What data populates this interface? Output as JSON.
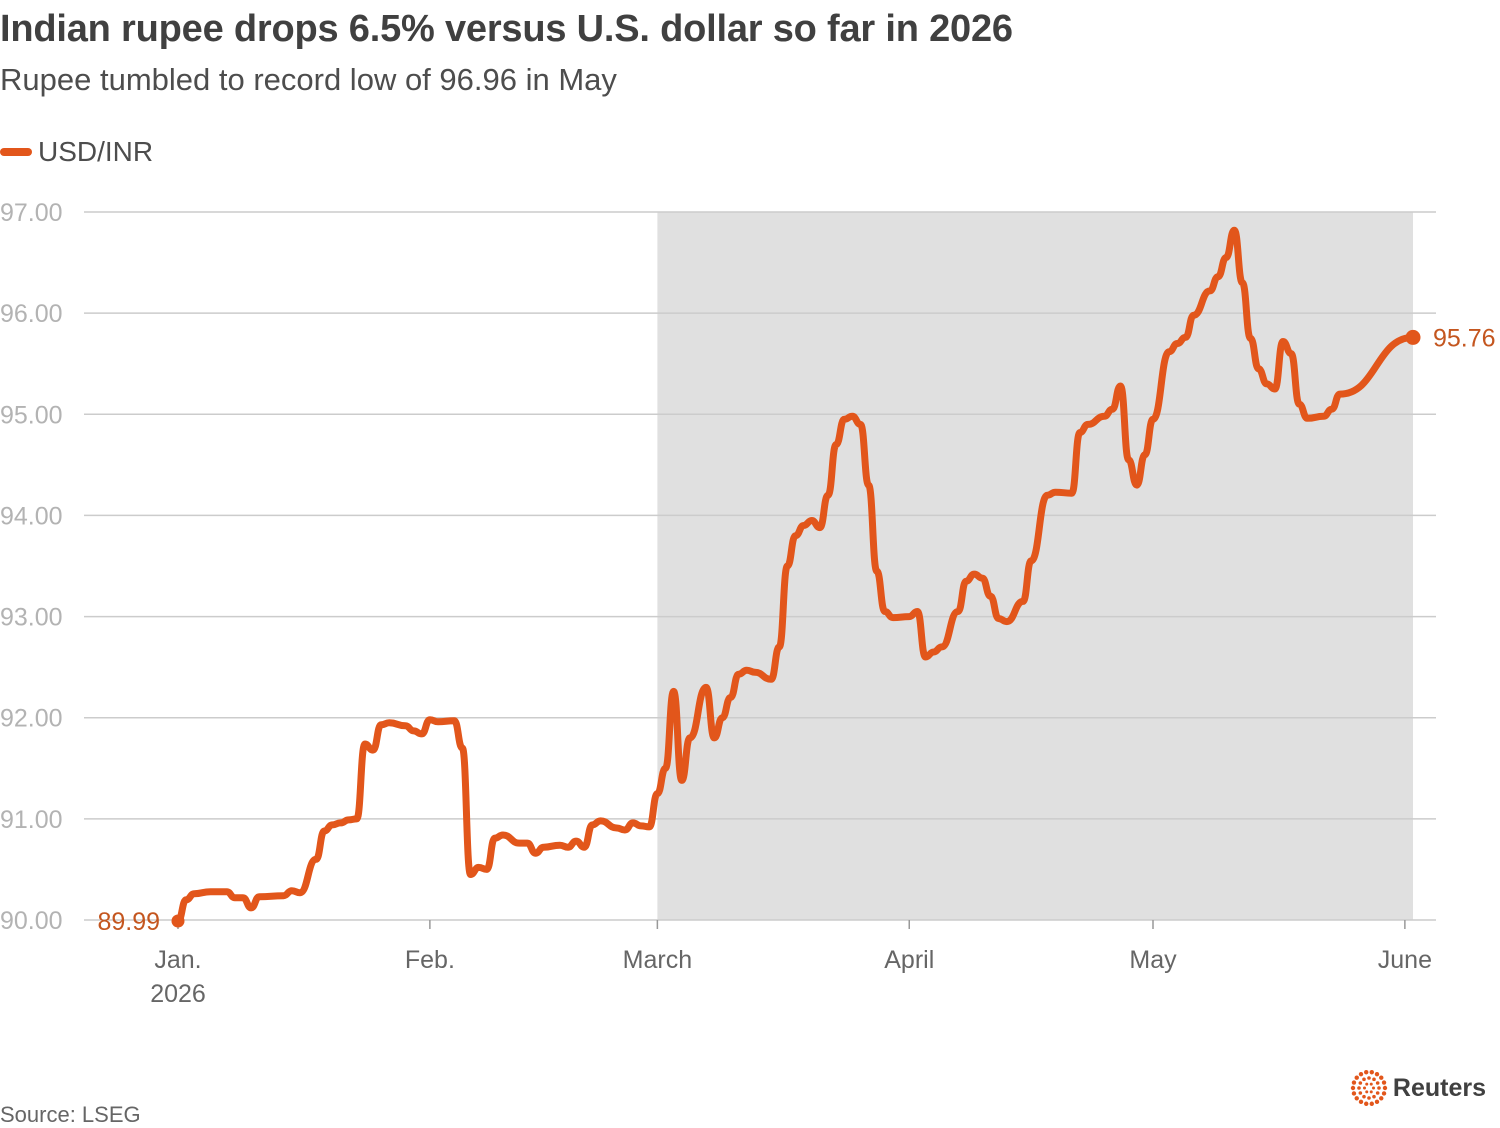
{
  "header": {
    "title": "Indian rupee drops 6.5% versus U.S. dollar so far in 2026",
    "subtitle": "Rupee tumbled to record low of 96.96 in May"
  },
  "legend": {
    "label": "USD/INR",
    "color": "#e2561b"
  },
  "footer": {
    "source": "Source: LSEG",
    "brand": "Reuters",
    "brand_icon": "reuters-dot-ring-icon"
  },
  "colors": {
    "line": "#e2561b",
    "label": "#c4561f",
    "shade": "#e0e0e0",
    "grid": "#cccccc",
    "tick_text": "#b3b3b3",
    "axis_text": "#666666"
  },
  "chart_data": {
    "type": "line",
    "title": "Indian rupee drops 6.5% versus U.S. dollar so far in 2026",
    "subtitle": "Rupee tumbled to record low of 96.96 in May",
    "xlabel": "",
    "ylabel": "",
    "ylim": [
      90,
      97
    ],
    "yticks": [
      "97.00",
      "96.00",
      "95.00",
      "94.00",
      "93.00",
      "92.00",
      "91.00",
      "90.00"
    ],
    "ytick_values": [
      97,
      96,
      95,
      94,
      93,
      92,
      91,
      90
    ],
    "xticks": [
      {
        "date": "2026-01-01",
        "label": "Jan.",
        "sublabel": "2026"
      },
      {
        "date": "2026-02-01",
        "label": "Feb.",
        "sublabel": ""
      },
      {
        "date": "2026-03-01",
        "label": "March",
        "sublabel": ""
      },
      {
        "date": "2026-04-01",
        "label": "April",
        "sublabel": ""
      },
      {
        "date": "2026-05-01",
        "label": "May",
        "sublabel": ""
      },
      {
        "date": "2026-06-01",
        "label": "June",
        "sublabel": ""
      }
    ],
    "xlim": [
      "2026-01-01",
      "2026-06-02"
    ],
    "shaded_range": [
      "2026-03-01",
      "2026-06-02"
    ],
    "grid": true,
    "legend": "top-left",
    "series": [
      {
        "name": "USD/INR",
        "start_label": "89.99",
        "end_label": "95.76",
        "points": [
          [
            "2026-01-01",
            89.99
          ],
          [
            "2026-01-02",
            90.2
          ],
          [
            "2026-01-03",
            90.26
          ],
          [
            "2026-01-05",
            90.28
          ],
          [
            "2026-01-07",
            90.28
          ],
          [
            "2026-01-08",
            90.22
          ],
          [
            "2026-01-09",
            90.22
          ],
          [
            "2026-01-10",
            90.12
          ],
          [
            "2026-01-11",
            90.23
          ],
          [
            "2026-01-14",
            90.24
          ],
          [
            "2026-01-15",
            90.29
          ],
          [
            "2026-01-16",
            90.27
          ],
          [
            "2026-01-18",
            90.6
          ],
          [
            "2026-01-19",
            90.88
          ],
          [
            "2026-01-20",
            90.94
          ],
          [
            "2026-01-21",
            90.96
          ],
          [
            "2026-01-22",
            90.99
          ],
          [
            "2026-01-23",
            91.0
          ],
          [
            "2026-01-24",
            91.74
          ],
          [
            "2026-01-25",
            91.68
          ],
          [
            "2026-01-26",
            91.93
          ],
          [
            "2026-01-27",
            91.95
          ],
          [
            "2026-01-29",
            91.92
          ],
          [
            "2026-01-30",
            91.87
          ],
          [
            "2026-01-31",
            91.84
          ],
          [
            "2026-02-01",
            91.98
          ],
          [
            "2026-02-02",
            91.96
          ],
          [
            "2026-02-04",
            91.97
          ],
          [
            "2026-02-05",
            91.7
          ],
          [
            "2026-02-06",
            90.45
          ],
          [
            "2026-02-07",
            90.52
          ],
          [
            "2026-02-08",
            90.5
          ],
          [
            "2026-02-09",
            90.81
          ],
          [
            "2026-02-10",
            90.84
          ],
          [
            "2026-02-12",
            90.76
          ],
          [
            "2026-02-13",
            90.76
          ],
          [
            "2026-02-14",
            90.66
          ],
          [
            "2026-02-15",
            90.72
          ],
          [
            "2026-02-17",
            90.74
          ],
          [
            "2026-02-18",
            90.72
          ],
          [
            "2026-02-19",
            90.78
          ],
          [
            "2026-02-20",
            90.72
          ],
          [
            "2026-02-21",
            90.94
          ],
          [
            "2026-02-22",
            90.98
          ],
          [
            "2026-02-24",
            90.91
          ],
          [
            "2026-02-25",
            90.89
          ],
          [
            "2026-02-26",
            90.96
          ],
          [
            "2026-02-27",
            90.93
          ],
          [
            "2026-02-28",
            90.92
          ],
          [
            "2026-03-01",
            91.25
          ],
          [
            "2026-03-02",
            91.5
          ],
          [
            "2026-03-03",
            92.26
          ],
          [
            "2026-03-04",
            91.38
          ],
          [
            "2026-03-05",
            91.8
          ],
          [
            "2026-03-07",
            92.3
          ],
          [
            "2026-03-08",
            91.8
          ],
          [
            "2026-03-09",
            92.0
          ],
          [
            "2026-03-10",
            92.2
          ],
          [
            "2026-03-11",
            92.43
          ],
          [
            "2026-03-12",
            92.47
          ],
          [
            "2026-03-13",
            92.45
          ],
          [
            "2026-03-15",
            92.38
          ],
          [
            "2026-03-16",
            92.7
          ],
          [
            "2026-03-17",
            93.5
          ],
          [
            "2026-03-18",
            93.8
          ],
          [
            "2026-03-19",
            93.9
          ],
          [
            "2026-03-20",
            93.95
          ],
          [
            "2026-03-21",
            93.88
          ],
          [
            "2026-03-22",
            94.2
          ],
          [
            "2026-03-23",
            94.7
          ],
          [
            "2026-03-24",
            94.95
          ],
          [
            "2026-03-25",
            94.98
          ],
          [
            "2026-03-26",
            94.9
          ],
          [
            "2026-03-27",
            94.3
          ],
          [
            "2026-03-28",
            93.45
          ],
          [
            "2026-03-29",
            93.05
          ],
          [
            "2026-03-30",
            92.99
          ],
          [
            "2026-04-01",
            93.0
          ],
          [
            "2026-04-02",
            93.05
          ],
          [
            "2026-04-03",
            92.6
          ],
          [
            "2026-04-04",
            92.65
          ],
          [
            "2026-04-05",
            92.7
          ],
          [
            "2026-04-07",
            93.05
          ],
          [
            "2026-04-08",
            93.35
          ],
          [
            "2026-04-09",
            93.42
          ],
          [
            "2026-04-10",
            93.38
          ],
          [
            "2026-04-11",
            93.2
          ],
          [
            "2026-04-12",
            92.98
          ],
          [
            "2026-04-13",
            92.95
          ],
          [
            "2026-04-15",
            93.15
          ],
          [
            "2026-04-16",
            93.55
          ],
          [
            "2026-04-18",
            94.2
          ],
          [
            "2026-04-19",
            94.23
          ],
          [
            "2026-04-21",
            94.22
          ],
          [
            "2026-04-22",
            94.82
          ],
          [
            "2026-04-23",
            94.9
          ],
          [
            "2026-04-25",
            94.98
          ],
          [
            "2026-04-26",
            95.05
          ],
          [
            "2026-04-27",
            95.28
          ],
          [
            "2026-04-28",
            94.55
          ],
          [
            "2026-04-29",
            94.3
          ],
          [
            "2026-04-30",
            94.6
          ],
          [
            "2026-05-01",
            94.95
          ],
          [
            "2026-05-03",
            95.62
          ],
          [
            "2026-05-04",
            95.7
          ],
          [
            "2026-05-05",
            95.76
          ],
          [
            "2026-05-06",
            95.98
          ],
          [
            "2026-05-08",
            96.22
          ],
          [
            "2026-05-09",
            96.36
          ],
          [
            "2026-05-10",
            96.55
          ],
          [
            "2026-05-11",
            96.82
          ],
          [
            "2026-05-12",
            96.3
          ],
          [
            "2026-05-13",
            95.75
          ],
          [
            "2026-05-14",
            95.45
          ],
          [
            "2026-05-15",
            95.3
          ],
          [
            "2026-05-16",
            95.25
          ],
          [
            "2026-05-17",
            95.72
          ],
          [
            "2026-05-18",
            95.6
          ],
          [
            "2026-05-19",
            95.1
          ],
          [
            "2026-05-20",
            94.96
          ],
          [
            "2026-05-22",
            94.98
          ],
          [
            "2026-05-23",
            95.05
          ],
          [
            "2026-05-24",
            95.2
          ],
          [
            "2026-06-02",
            95.76
          ]
        ]
      }
    ]
  }
}
